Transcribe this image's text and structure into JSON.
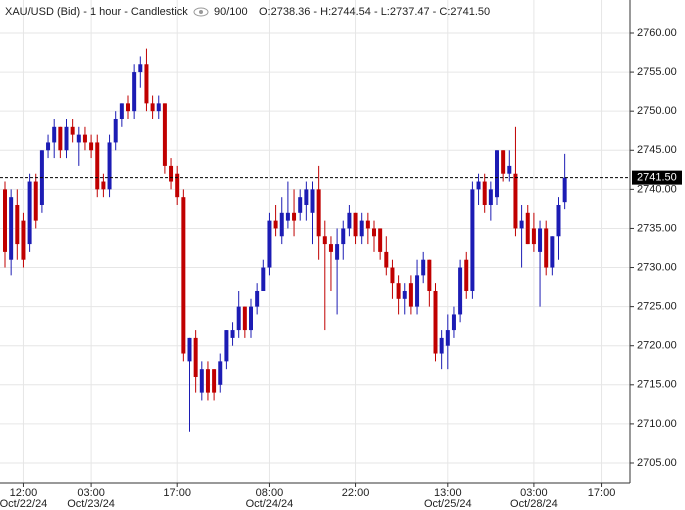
{
  "chart_data": {
    "type": "candlestick",
    "title": "XAU/USD (Bid) - 1 hour - Candlestick",
    "zoom": "90/100",
    "ohlc_label": "O:2738.36 - H:2744.54 - L:2737.47 - C:2741.50",
    "up_color": "#1c1cb4",
    "down_color": "#c00000",
    "grid": true,
    "ylim": [
      2702.44,
      2764.22
    ],
    "yticks": [
      {
        "value": 2705,
        "label": "2705.00"
      },
      {
        "value": 2710,
        "label": "2710.00"
      },
      {
        "value": 2715,
        "label": "2715.00"
      },
      {
        "value": 2720,
        "label": "2720.00"
      },
      {
        "value": 2725,
        "label": "2725.00"
      },
      {
        "value": 2730,
        "label": "2730.00"
      },
      {
        "value": 2735,
        "label": "2735.00"
      },
      {
        "value": 2740,
        "label": "2740.00"
      },
      {
        "value": 2745,
        "label": "2745.00"
      },
      {
        "value": 2750,
        "label": "2750.00"
      },
      {
        "value": 2755,
        "label": "2755.00"
      },
      {
        "value": 2760,
        "label": "2760.00"
      }
    ],
    "last_price": {
      "value": 2741.5,
      "label": "2741.50"
    },
    "categories": [
      null,
      null,
      null,
      "12:00",
      null,
      null,
      null,
      null,
      null,
      null,
      null,
      null,
      null,
      null,
      "03:00",
      null,
      null,
      null,
      null,
      null,
      null,
      null,
      null,
      null,
      null,
      null,
      null,
      null,
      "17:00",
      null,
      null,
      null,
      null,
      null,
      null,
      null,
      null,
      null,
      null,
      null,
      null,
      null,
      null,
      "08:00",
      null,
      null,
      null,
      null,
      null,
      null,
      null,
      null,
      null,
      null,
      null,
      null,
      null,
      "22:00",
      null,
      null,
      null,
      null,
      null,
      null,
      null,
      null,
      null,
      null,
      null,
      null,
      null,
      null,
      "13:00",
      null,
      null,
      null,
      null,
      null,
      null,
      null,
      null,
      null,
      null,
      null,
      null,
      null,
      "03:00",
      null,
      null,
      null,
      null,
      null,
      null,
      null,
      null,
      null,
      null,
      "17:00"
    ],
    "dates": [
      null,
      null,
      null,
      "Oct/22/24",
      null,
      null,
      null,
      null,
      null,
      null,
      null,
      null,
      null,
      null,
      "Oct/23/24",
      null,
      null,
      null,
      null,
      null,
      null,
      null,
      null,
      null,
      null,
      null,
      null,
      null,
      null,
      null,
      null,
      null,
      null,
      null,
      null,
      null,
      null,
      null,
      null,
      null,
      null,
      null,
      null,
      "Oct/24/24",
      null,
      null,
      null,
      null,
      null,
      null,
      null,
      null,
      null,
      null,
      null,
      null,
      null,
      null,
      null,
      null,
      null,
      null,
      null,
      null,
      null,
      null,
      null,
      null,
      null,
      null,
      null,
      null,
      "Oct/25/24",
      null,
      null,
      null,
      null,
      null,
      null,
      null,
      null,
      null,
      null,
      null,
      null,
      null,
      "Oct/28/24",
      null,
      null,
      null,
      null,
      null,
      null,
      null,
      null,
      null,
      null,
      null
    ],
    "open": [
      2740,
      2731,
      2738,
      2736,
      2733,
      2741,
      2738,
      2745,
      2746,
      2748,
      2745,
      2748,
      2746,
      2747,
      2746,
      2746,
      2741,
      2740,
      2746,
      2749,
      2751,
      2750,
      2755,
      2756,
      2751,
      2750,
      2751,
      2743,
      2742,
      2739,
      2718,
      2721,
      2714,
      2717,
      2717,
      2715,
      2718,
      2721,
      2722,
      2725,
      2722,
      2725,
      2727,
      2730,
      2736,
      2734,
      2736,
      2737,
      2737,
      2738,
      2737,
      2740,
      2734,
      2733,
      2731,
      2733,
      2735,
      2737,
      2734,
      2736,
      2735,
      2735,
      2732,
      2730,
      2728,
      2726,
      2728,
      2725,
      2729,
      2731,
      2727,
      2719,
      2720,
      2722,
      2724,
      2731,
      2727,
      2740,
      2741,
      2738,
      2739,
      2745,
      2742,
      2742,
      2735,
      2737,
      2735,
      2732,
      2735,
      2730,
      2734,
      2738.36,
      null,
      null,
      null,
      null,
      null,
      null
    ],
    "high": [
      2741,
      2740,
      2740,
      2737,
      2742,
      2742,
      2745,
      2747,
      2749,
      2748,
      2749,
      2749,
      2748,
      2748,
      2747,
      2747,
      2742,
      2747,
      2750,
      2751,
      2752,
      2756,
      2757,
      2758,
      2752,
      2752,
      2751,
      2744,
      2743,
      2740,
      2721,
      2722,
      2718,
      2718,
      2717,
      2719,
      2722,
      2723,
      2727,
      2725,
      2726,
      2728,
      2731,
      2737,
      2738,
      2739,
      2741,
      2740,
      2740,
      2741,
      2741,
      2743,
      2736,
      2734,
      2735,
      2736,
      2738,
      2737,
      2737,
      2737,
      2736,
      2735,
      2734,
      2731,
      2729,
      2728,
      2729,
      2731,
      2732,
      2731,
      2728,
      2722,
      2724,
      2725,
      2731,
      2732,
      2741,
      2742,
      2742,
      2741,
      2745,
      2745,
      2745,
      2748,
      2738,
      2738,
      2737,
      2736,
      2736,
      2734,
      2739,
      2744.54,
      null,
      null,
      null,
      null,
      null,
      null
    ],
    "low": [
      2730,
      2729,
      2731,
      2730,
      2732,
      2735,
      2737,
      2744,
      2744,
      2744,
      2744,
      2746,
      2743,
      2745,
      2744,
      2739,
      2739,
      2739,
      2745,
      2748,
      2749,
      2749,
      2753,
      2750,
      2749,
      2749,
      2742,
      2740,
      2738,
      2718,
      2709,
      2714,
      2713,
      2713,
      2713,
      2714,
      2717,
      2720,
      2721,
      2721,
      2721,
      2724,
      2727,
      2729,
      2734,
      2733,
      2735,
      2734,
      2736,
      2736,
      2733,
      2731,
      2722,
      2727,
      2724,
      2731,
      2734,
      2733,
      2733,
      2733,
      2732,
      2731,
      2729,
      2726,
      2724,
      2724,
      2724,
      2724,
      2728,
      2725,
      2718,
      2717,
      2717,
      2721,
      2723,
      2726,
      2726,
      2738,
      2737,
      2736,
      2738,
      2741,
      2741,
      2734,
      2730,
      2733,
      2732,
      2725,
      2729,
      2729,
      2731,
      2737.47,
      null,
      null,
      null,
      null,
      null,
      null
    ],
    "close": [
      2732,
      2739,
      2733,
      2731,
      2741,
      2736,
      2745,
      2746,
      2748,
      2745,
      2748,
      2747,
      2747,
      2746,
      2745,
      2740,
      2740,
      2746,
      2749,
      2751,
      2750,
      2755,
      2756,
      2751,
      2750,
      2751,
      2743,
      2741,
      2739,
      2719,
      2721,
      2716,
      2717,
      2714,
      2714,
      2718,
      2722,
      2722,
      2725,
      2722,
      2725,
      2727,
      2730,
      2736,
      2735,
      2737,
      2737,
      2736,
      2739,
      2740,
      2740,
      2734,
      2733,
      2732,
      2733,
      2735,
      2737,
      2734,
      2736,
      2735,
      2734,
      2732,
      2730,
      2728,
      2726,
      2727,
      2725,
      2729,
      2731,
      2727,
      2719,
      2721,
      2722,
      2724,
      2730,
      2727,
      2740,
      2741,
      2738,
      2740,
      2745,
      2742,
      2743,
      2735,
      2736,
      2733,
      2733,
      2735,
      2730,
      2734,
      2738,
      2741.5,
      null,
      null,
      null,
      null,
      null,
      null
    ]
  }
}
